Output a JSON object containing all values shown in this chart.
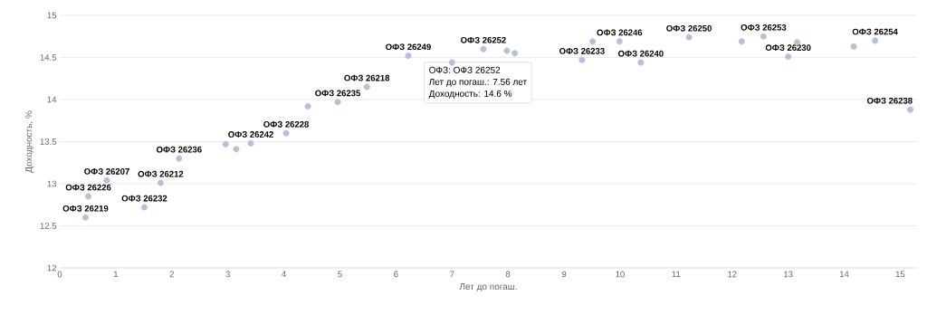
{
  "chart_data": {
    "type": "scatter",
    "xlabel": "Лет до погаш.",
    "ylabel": "Доходность, %",
    "x": [
      0.46,
      0.51,
      0.84,
      1.51,
      1.8,
      2.13,
      2.96,
      3.15,
      3.41,
      4.04,
      4.43,
      4.96,
      5.48,
      6.22,
      7.0,
      7.56,
      7.98,
      8.12,
      9.32,
      9.51,
      9.99,
      10.37,
      11.23,
      12.17,
      12.56,
      13.0,
      13.16,
      14.17,
      14.55,
      15.18
    ],
    "values": [
      12.6,
      12.85,
      13.04,
      12.72,
      13.01,
      13.3,
      13.47,
      13.41,
      13.48,
      13.6,
      13.92,
      13.97,
      14.15,
      14.52,
      14.44,
      14.6,
      14.58,
      14.55,
      14.47,
      14.69,
      14.69,
      14.44,
      14.74,
      14.69,
      14.75,
      14.51,
      14.68,
      14.63,
      14.7,
      13.88
    ],
    "color": "#b4c2d8",
    "marker": "circle",
    "grid": "y",
    "xlim": [
      0,
      15.3
    ],
    "ylim": [
      12,
      15
    ],
    "xticks": [
      0,
      1,
      2,
      3,
      4,
      5,
      6,
      7,
      8,
      9,
      10,
      11,
      12,
      13,
      14,
      15
    ],
    "yticks": [
      12,
      12.5,
      13,
      13.5,
      14,
      14.5,
      15
    ],
    "annotations": [
      {
        "text": "ОФЗ 26219",
        "x": 0.46,
        "y": 12.6
      },
      {
        "text": "ОФЗ 26226",
        "x": 0.51,
        "y": 12.85
      },
      {
        "text": "ОФЗ 26207",
        "x": 0.84,
        "y": 13.04
      },
      {
        "text": "ОФЗ 26232",
        "x": 1.51,
        "y": 12.72
      },
      {
        "text": "ОФЗ 26212",
        "x": 1.8,
        "y": 13.01
      },
      {
        "text": "ОФЗ 26236",
        "x": 2.13,
        "y": 13.3
      },
      {
        "text": "ОФЗ 26242",
        "x": 3.41,
        "y": 13.48
      },
      {
        "text": "ОФЗ 26228",
        "x": 4.04,
        "y": 13.6
      },
      {
        "text": "ОФЗ 26235",
        "x": 4.96,
        "y": 13.97
      },
      {
        "text": "ОФЗ 26218",
        "x": 5.48,
        "y": 14.15
      },
      {
        "text": "ОФЗ 26249",
        "x": 6.22,
        "y": 14.52
      },
      {
        "text": "ОФЗ 26252",
        "x": 7.56,
        "y": 14.6
      },
      {
        "text": "ОФЗ 26233",
        "x": 9.32,
        "y": 14.47
      },
      {
        "text": "ОФЗ 26246",
        "x": 9.99,
        "y": 14.69
      },
      {
        "text": "ОФЗ 26240",
        "x": 10.37,
        "y": 14.44
      },
      {
        "text": "ОФЗ 26250",
        "x": 11.23,
        "y": 14.74
      },
      {
        "text": "ОФЗ 26253",
        "x": 12.56,
        "y": 14.75
      },
      {
        "text": "ОФЗ 26230",
        "x": 13.0,
        "y": 14.51
      },
      {
        "text": "ОФЗ 26254",
        "x": 14.55,
        "y": 14.7
      },
      {
        "text": "ОФЗ 26238",
        "x": 15.18,
        "y": 13.88
      },
      "ОФЗ: ОФЗ 26252",
      "Лет до погаш.: 7.56 лет",
      "Доходность: 14.6 %"
    ]
  }
}
